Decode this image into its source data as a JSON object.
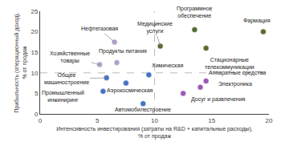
{
  "chart_data": {
    "type": "scatter",
    "xlabel": "Интенсивность инвестирования (затраты на R&D + капитальные расходы),\n% от продаж",
    "ylabel": "Прибыльность (операционный доход),\n% от продаж",
    "labels": [
      "Нефтегазовая",
      "Хозяйственные\nтовары",
      "Продукты питания",
      "Общее\nмашиностроение",
      "Промышленный\nинжиниринг",
      "Аэрокосмическая",
      "Химическая",
      "Автомобилестроение",
      "Медицинские\nуслуги",
      "Программное\nобеспечение",
      "Стационарные\nтелекоммуникации",
      "Фармация",
      "Аппаратные средства",
      "Электроника",
      "Досуг и развлечения"
    ],
    "x": [
      6.5,
      5.2,
      6.7,
      5.8,
      5.5,
      7.5,
      9.5,
      9.0,
      10.5,
      13.5,
      14.5,
      19.5,
      14.5,
      14.0,
      12.5
    ],
    "values": [
      17.5,
      12.0,
      12.5,
      8.8,
      5.5,
      7.5,
      9.5,
      2.5,
      16.5,
      20.5,
      16.0,
      20.0,
      8.0,
      6.5,
      5.0
    ],
    "colors": [
      "#b0a0cc",
      "#b0a0cc",
      "#b0a0cc",
      "#4472c4",
      "#4472c4",
      "#4472c4",
      "#4472c4",
      "#4472c4",
      "#556b2f",
      "#556b2f",
      "#556b2f",
      "#556b2f",
      "#9b59b6",
      "#9b59b6",
      "#9b59b6"
    ],
    "hline": 10,
    "vline": 10,
    "xlim": [
      0,
      20
    ],
    "ylim": [
      0,
      25
    ],
    "xticks": [
      0,
      5,
      10,
      15,
      20
    ],
    "yticks": [
      0,
      5,
      10,
      15,
      20,
      25
    ],
    "grid": false
  }
}
